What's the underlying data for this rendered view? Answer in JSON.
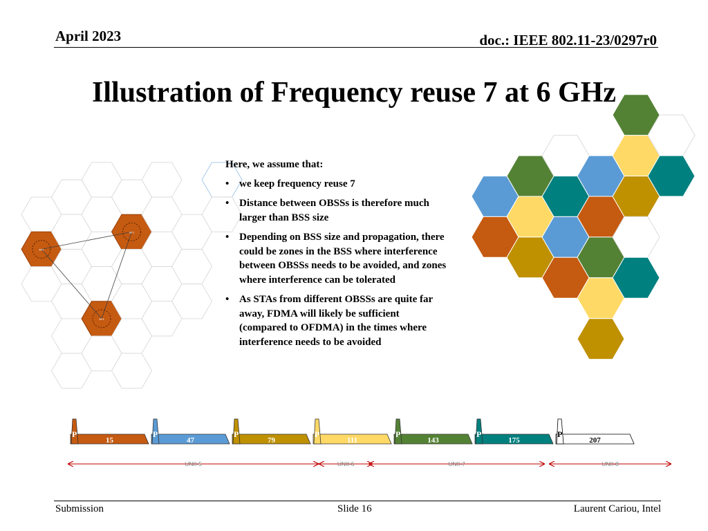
{
  "header": {
    "date": "April 2023",
    "doc": "doc.: IEEE 802.11-23/0297r0"
  },
  "title": "Illustration of Frequency reuse 7 at 6 GHz",
  "content": {
    "intro": "Here, we assume that:",
    "bullets": [
      "we keep frequency reuse 7",
      "Distance between OBSSs is therefore much larger than BSS size",
      "Depending on BSS size and propagation, there could be zones in the BSS where interference between OBSSs needs to be avoided, and zones where interference can be tolerated",
      "As STAs from different OBSSs are quite far away, FDMA will likely be sufficient (compared to OFDMA) in the times where interference needs to be avoided"
    ]
  },
  "left_diagram": {
    "ap_label": "AP1",
    "bss_color": "#c55a11"
  },
  "channels": {
    "primary_label": "P",
    "items": [
      {
        "number": "15",
        "color": "#c55a11"
      },
      {
        "number": "47",
        "color": "#5b9bd5"
      },
      {
        "number": "79",
        "color": "#bf9000"
      },
      {
        "number": "111",
        "color": "#ffd966"
      },
      {
        "number": "143",
        "color": "#548235"
      },
      {
        "number": "175",
        "color": "#00807f"
      },
      {
        "number": "207",
        "color": "#ffffff"
      }
    ]
  },
  "bands": [
    {
      "label": "UNII-5"
    },
    {
      "label": "UNII-6"
    },
    {
      "label": "UNII-7"
    },
    {
      "label": "UNII-8"
    }
  ],
  "colors": {
    "orange": "#c55a11",
    "blue": "#5b9bd5",
    "gold": "#bf9000",
    "yellow": "#ffd966",
    "green": "#548235",
    "teal": "#00807f",
    "band_arrow": "#c00000"
  },
  "footer": {
    "left": "Submission",
    "center": "Slide 16",
    "right": "Laurent Cariou, Intel"
  }
}
